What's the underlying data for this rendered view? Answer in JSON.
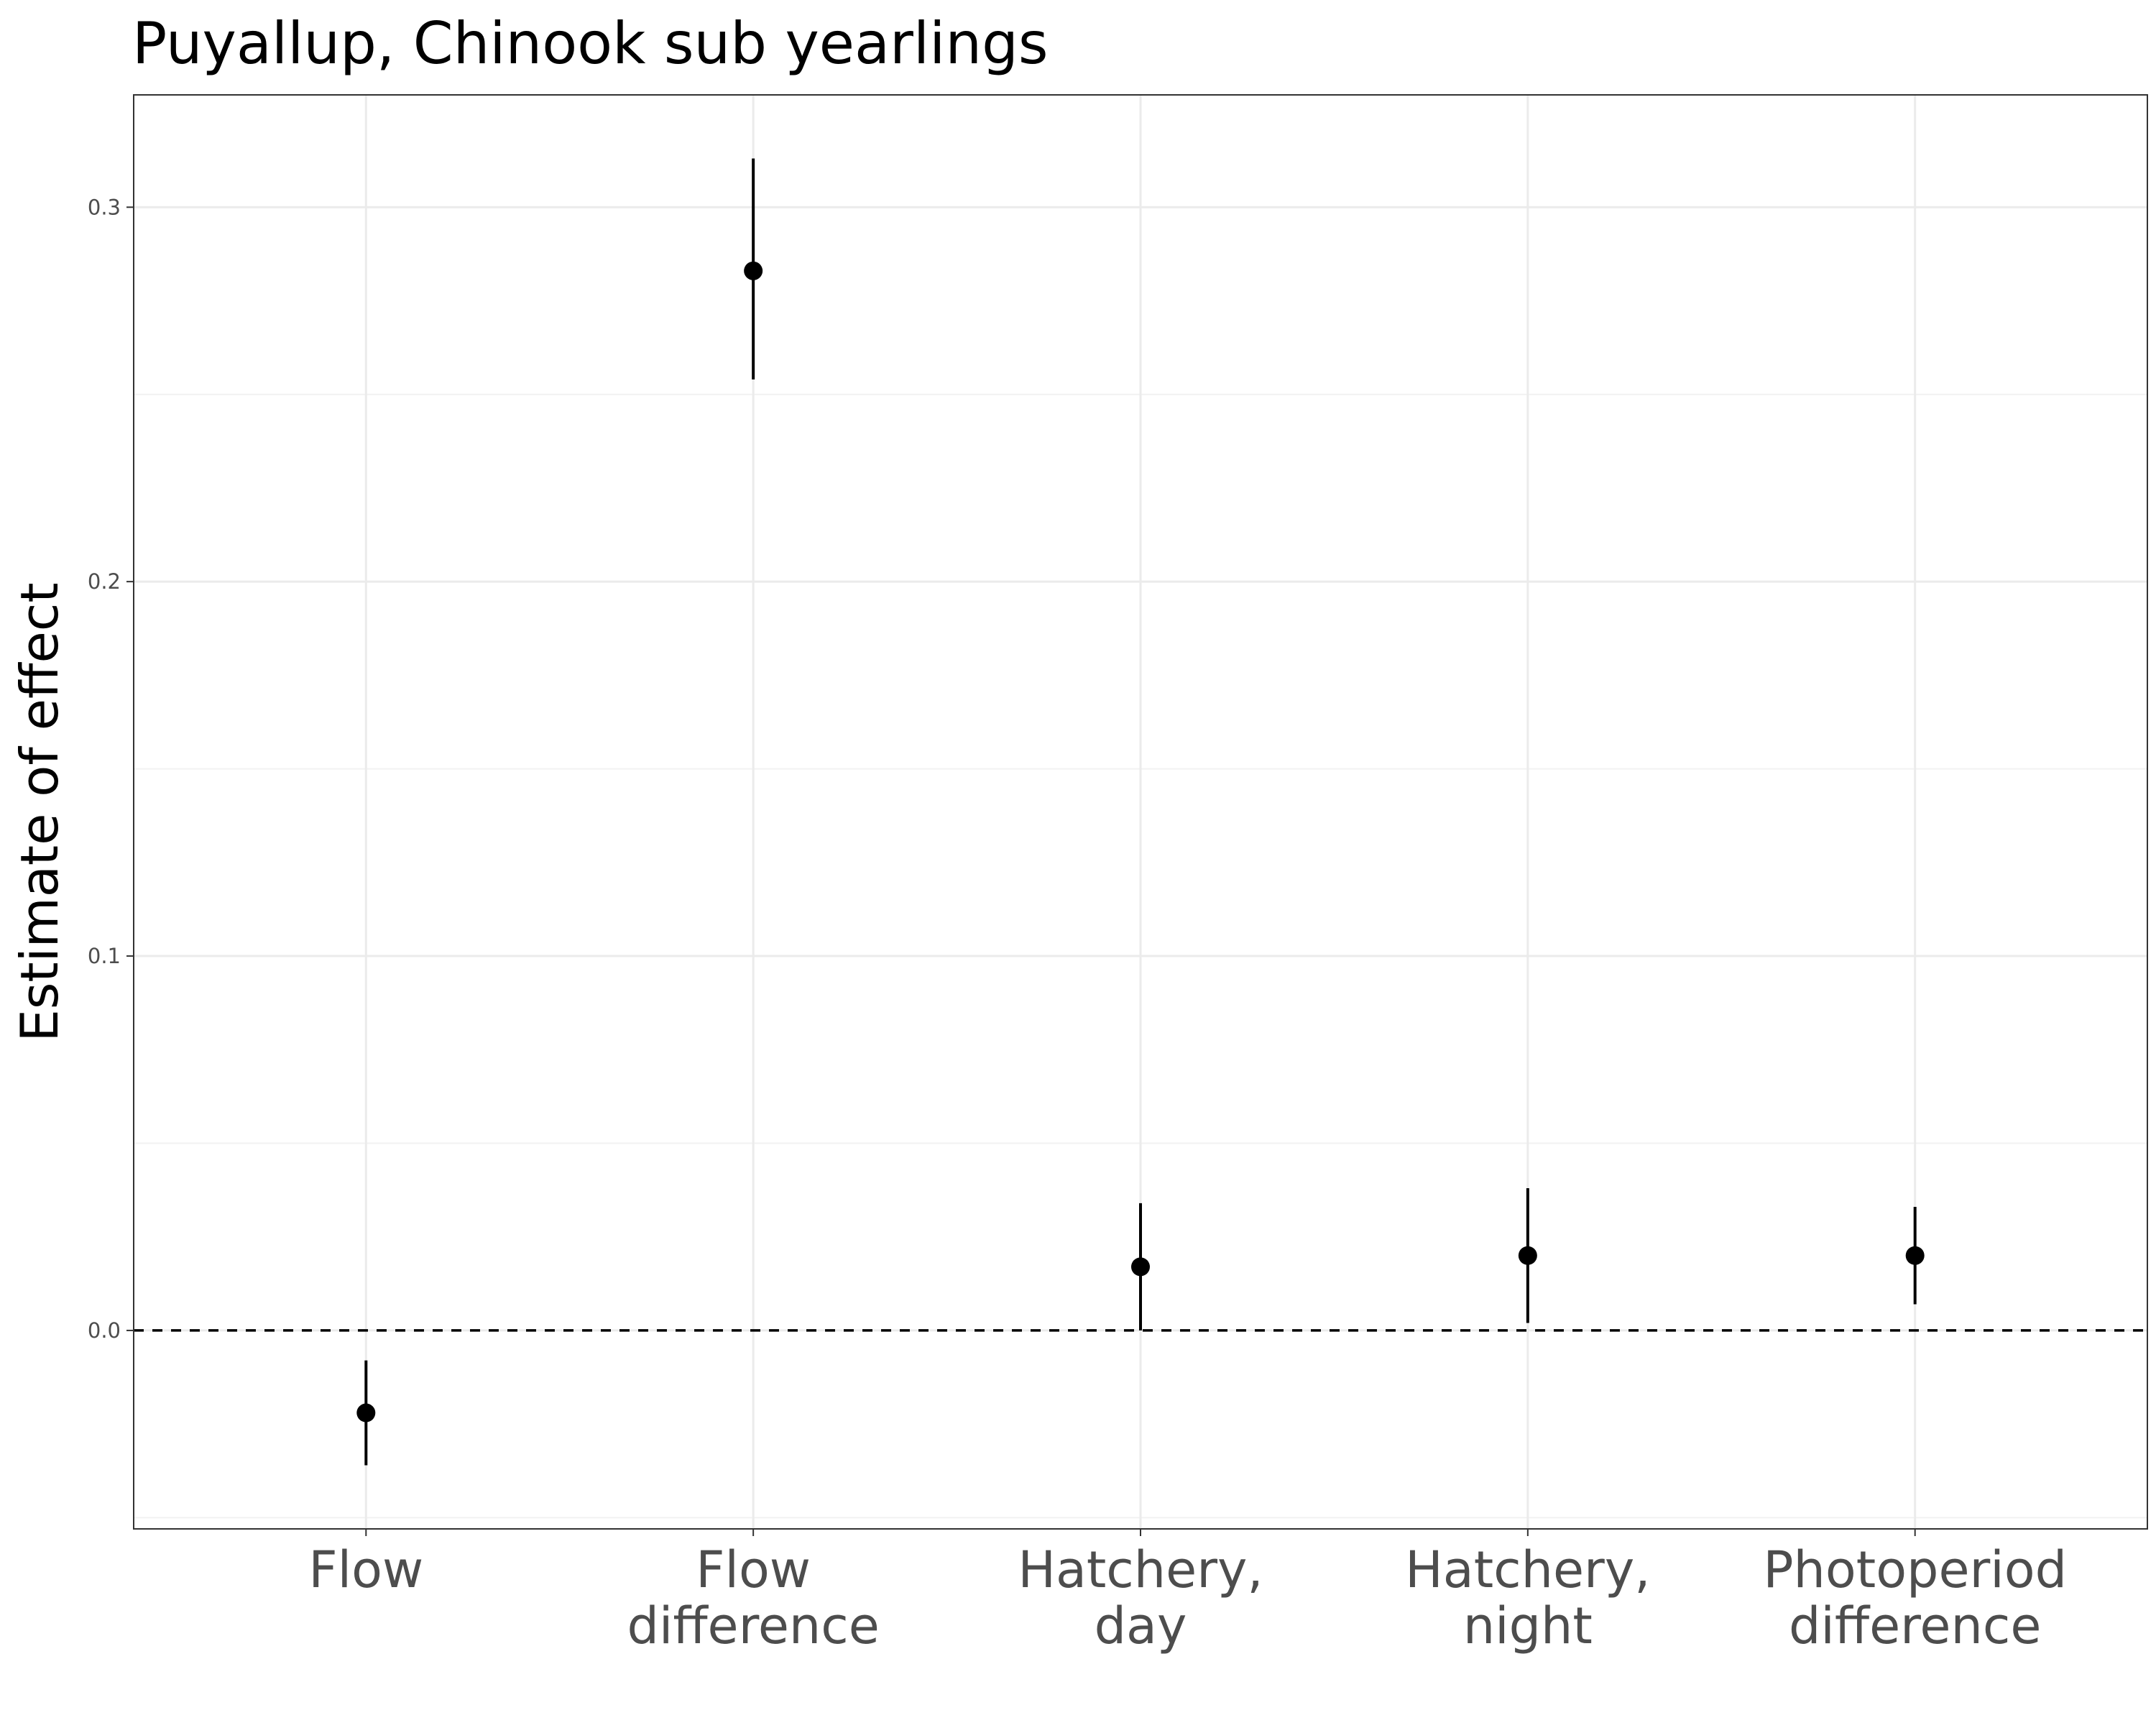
{
  "chart_data": {
    "type": "scatter",
    "title": "Puyallup, Chinook sub yearlings",
    "xlabel": "",
    "ylabel": "Estimate of effect",
    "categories": [
      [
        "Flow"
      ],
      [
        "Flow",
        "difference"
      ],
      [
        "Hatchery,",
        "day"
      ],
      [
        "Hatchery,",
        "night"
      ],
      [
        "Photoperiod",
        "difference"
      ]
    ],
    "estimates": [
      -0.022,
      0.283,
      0.017,
      0.02,
      0.02
    ],
    "lower": [
      -0.036,
      0.254,
      0.0,
      0.002,
      0.007
    ],
    "upper": [
      -0.008,
      0.313,
      0.034,
      0.038,
      0.033
    ],
    "ylim": [
      -0.053,
      0.33
    ],
    "yticks": [
      0.0,
      0.1,
      0.2,
      0.3
    ],
    "ytick_labels": [
      "0.0",
      "0.1",
      "0.2",
      "0.3"
    ],
    "reference_line": 0.0,
    "grid": true,
    "point_color": "#000000",
    "gridline_color": "#ebebeb",
    "reference_line_color": "#000000"
  }
}
